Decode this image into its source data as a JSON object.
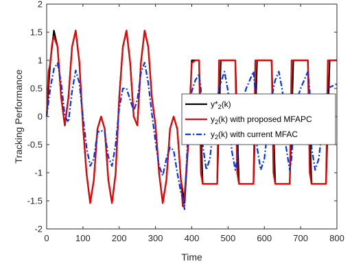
{
  "chart_data": {
    "type": "line",
    "title": "",
    "xlabel": "Time",
    "ylabel": "Tracking Performance",
    "xlim": [
      0,
      800
    ],
    "ylim": [
      -2,
      2
    ],
    "xticks": [
      0,
      100,
      200,
      300,
      400,
      500,
      600,
      700,
      800
    ],
    "yticks": [
      -2,
      -1.5,
      -1,
      -0.5,
      0,
      0.5,
      1,
      1.5,
      2
    ],
    "xtick_labels": [
      "0",
      "100",
      "200",
      "300",
      "400",
      "500",
      "600",
      "700",
      "800"
    ],
    "ytick_labels": [
      "-2",
      "-1.5",
      "-1",
      "-0.5",
      "0",
      "0.5",
      "1",
      "1.5",
      "2"
    ],
    "grid": false,
    "legend_position": "center-right",
    "series": [
      {
        "name": "y*2(k)",
        "legend_main": "y*",
        "legend_sub": "2",
        "legend_tail": "(k)",
        "color": "#000000",
        "style": "solid",
        "x": [
          0,
          10,
          20,
          30,
          40,
          50,
          60,
          70,
          80,
          90,
          100,
          110,
          120,
          130,
          140,
          150,
          160,
          170,
          180,
          190,
          200,
          210,
          220,
          230,
          240,
          250,
          260,
          270,
          280,
          290,
          300,
          310,
          320,
          330,
          340,
          350,
          360,
          370,
          380,
          390,
          400,
          410,
          420,
          430,
          440,
          450,
          460,
          470,
          480,
          490,
          500,
          510,
          520,
          530,
          540,
          550,
          560,
          570,
          580,
          590,
          600,
          610,
          620,
          630,
          640,
          650,
          660,
          670,
          680,
          690,
          700,
          710,
          720,
          730,
          740,
          750,
          760,
          770,
          780,
          790,
          800
        ],
        "values": [
          0.0,
          0.97,
          1.53,
          1.24,
          0.34,
          -0.16,
          0.34,
          1.24,
          1.53,
          0.97,
          -0.16,
          -1.02,
          -1.54,
          -1.13,
          -0.22,
          0.0,
          -0.22,
          -1.13,
          -1.54,
          -1.02,
          0.34,
          1.24,
          1.53,
          0.97,
          0.0,
          -0.16,
          0.97,
          1.53,
          1.24,
          0.34,
          -0.16,
          -1.02,
          -1.54,
          -1.13,
          -0.22,
          0.0,
          -0.22,
          -1.13,
          -1.54,
          -0.5,
          1.0,
          1.0,
          1.0,
          -1.2,
          -1.2,
          -1.2,
          -1.2,
          -1.2,
          1.0,
          1.0,
          1.0,
          1.0,
          1.0,
          -1.2,
          -1.2,
          -1.2,
          -1.2,
          -1.2,
          1.0,
          1.0,
          1.0,
          1.0,
          1.0,
          -1.2,
          -1.2,
          -1.2,
          -1.2,
          -1.2,
          1.0,
          1.0,
          1.0,
          1.0,
          1.0,
          -1.2,
          -1.2,
          -1.2,
          -1.2,
          -1.2,
          1.0,
          1.0,
          1.0
        ]
      },
      {
        "name": "y2(k) with proposed MFAPC",
        "legend_main": "y",
        "legend_sub": "2",
        "legend_tail": "(k) with proposed MFAPC",
        "color": "#ee0000",
        "style": "solid",
        "x": [
          0,
          5,
          10,
          15,
          20,
          30,
          40,
          50,
          60,
          70,
          80,
          90,
          100,
          110,
          120,
          130,
          140,
          150,
          160,
          170,
          180,
          190,
          200,
          210,
          220,
          230,
          240,
          250,
          260,
          270,
          280,
          290,
          300,
          310,
          320,
          330,
          340,
          350,
          360,
          370,
          375,
          380,
          390,
          400,
          410,
          420,
          425,
          430,
          440,
          450,
          460,
          470,
          475,
          480,
          490,
          500,
          510,
          520,
          525,
          530,
          540,
          550,
          560,
          570,
          575,
          580,
          590,
          600,
          610,
          620,
          625,
          630,
          640,
          650,
          660,
          670,
          675,
          680,
          690,
          700,
          710,
          720,
          725,
          730,
          740,
          750,
          760,
          770,
          775,
          780,
          790,
          800
        ],
        "values": [
          0.0,
          0.8,
          0.95,
          1.3,
          1.42,
          1.24,
          0.34,
          -0.16,
          0.34,
          1.24,
          1.53,
          0.97,
          -0.16,
          -1.02,
          -1.54,
          -1.13,
          -0.22,
          0.0,
          -0.22,
          -1.13,
          -1.54,
          -1.02,
          0.34,
          1.24,
          1.53,
          0.97,
          0.0,
          -0.16,
          0.97,
          1.53,
          1.24,
          0.34,
          -0.16,
          -1.02,
          -1.54,
          -1.13,
          -0.22,
          0.0,
          -0.22,
          -1.13,
          -1.6,
          -1.4,
          -0.5,
          0.95,
          1.0,
          1.0,
          -1.0,
          -1.2,
          -1.2,
          -1.2,
          -1.2,
          -1.2,
          1.0,
          1.0,
          1.0,
          1.0,
          1.0,
          1.0,
          -1.0,
          -1.2,
          -1.2,
          -1.2,
          -1.2,
          -1.2,
          1.0,
          1.0,
          1.0,
          1.0,
          1.0,
          1.0,
          -1.0,
          -1.2,
          -1.2,
          -1.2,
          -1.2,
          -1.2,
          1.0,
          1.0,
          1.0,
          1.0,
          1.0,
          1.0,
          -1.0,
          -1.2,
          -1.2,
          -1.2,
          -1.2,
          -1.2,
          1.0,
          1.0,
          1.0,
          1.0
        ]
      },
      {
        "name": "y2(k) with current MFAC",
        "legend_main": "y",
        "legend_sub": "2",
        "legend_tail": "(k) with current MFAC",
        "color": "#0033ee",
        "style": "dashdot",
        "x": [
          0,
          10,
          20,
          30,
          40,
          50,
          60,
          70,
          80,
          90,
          100,
          110,
          120,
          130,
          140,
          150,
          160,
          170,
          180,
          190,
          200,
          210,
          220,
          230,
          240,
          250,
          260,
          270,
          280,
          290,
          300,
          310,
          320,
          330,
          340,
          350,
          360,
          370,
          375,
          380,
          390,
          400,
          410,
          420,
          425,
          430,
          440,
          450,
          460,
          470,
          475,
          480,
          490,
          500,
          510,
          520,
          525,
          530,
          540,
          550,
          560,
          570,
          575,
          580,
          590,
          600,
          610,
          620,
          625,
          630,
          640,
          650,
          660,
          670,
          675,
          680,
          690,
          700,
          710,
          720,
          725,
          730,
          740,
          750,
          760,
          770,
          775,
          780,
          790,
          800
        ],
        "values": [
          0.0,
          0.5,
          0.85,
          0.95,
          0.6,
          0.0,
          -0.1,
          0.45,
          0.82,
          0.6,
          0.0,
          -0.55,
          -0.88,
          -0.75,
          -0.28,
          -0.25,
          -0.28,
          -0.72,
          -0.88,
          -0.5,
          0.15,
          0.5,
          0.5,
          0.3,
          0.1,
          0.3,
          0.78,
          0.96,
          0.6,
          0.05,
          -0.45,
          -0.88,
          -1.05,
          -0.75,
          -0.55,
          -0.6,
          -1.0,
          -1.35,
          -1.45,
          -1.65,
          -0.2,
          0.45,
          0.65,
          0.75,
          0.5,
          -0.5,
          -0.95,
          -0.75,
          -0.15,
          0.3,
          0.5,
          0.6,
          0.8,
          0.45,
          -0.6,
          -0.95,
          -0.75,
          -0.2,
          0.3,
          0.5,
          0.65,
          0.8,
          0.45,
          -0.55,
          -0.95,
          -0.75,
          -0.2,
          0.3,
          0.5,
          0.65,
          0.8,
          0.45,
          -0.55,
          -0.95,
          -0.75,
          -0.2,
          0.3,
          0.5,
          0.65,
          0.8,
          0.45,
          -0.55,
          -0.95,
          -0.75,
          -0.2,
          0.3,
          0.5,
          0.52,
          0.55,
          0.58
        ]
      }
    ]
  }
}
